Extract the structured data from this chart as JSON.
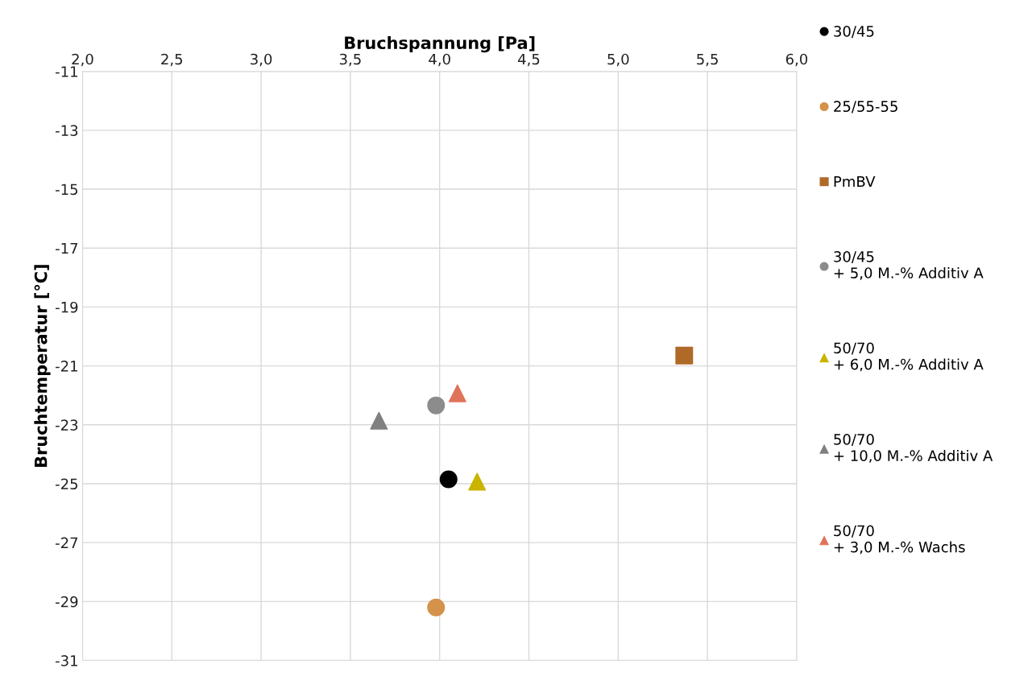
{
  "chart_data": {
    "type": "scatter",
    "xlabel": "Bruchspannung [Pa]",
    "ylabel": "Bruchtemperatur [°C]",
    "xlim": [
      2,
      6
    ],
    "xticks": [
      {
        "value": 2,
        "label": "2,0"
      },
      {
        "value": 2.5,
        "label": "2,5"
      },
      {
        "value": 3,
        "label": "3,0"
      },
      {
        "value": 3.5,
        "label": "3,5"
      },
      {
        "value": 4,
        "label": "4,0"
      },
      {
        "value": 4.5,
        "label": "4,5"
      },
      {
        "value": 5,
        "label": "5,0"
      },
      {
        "value": 5.5,
        "label": "5,5"
      },
      {
        "value": 6,
        "label": "6,0"
      }
    ],
    "ylim": [
      -31,
      -11
    ],
    "yticks": [
      -31,
      -29,
      -27,
      -25,
      -23,
      -21,
      -19,
      -17,
      -15,
      -13,
      -11
    ],
    "grid": true,
    "legend": "right",
    "series": [
      {
        "name": "30/45",
        "color": "#000000",
        "marker": "circle",
        "x": [
          4.05
        ],
        "values": [
          -24.85
        ]
      },
      {
        "name": "25/55-55",
        "color": "#d4924a",
        "marker": "circle",
        "x": [
          3.98
        ],
        "values": [
          -29.2
        ]
      },
      {
        "name": "PmBV",
        "color": "#b06a28",
        "marker": "square",
        "x": [
          5.37
        ],
        "values": [
          -20.65
        ]
      },
      {
        "name": "30/45\n+ 5,0 M.-% Additiv A",
        "color": "#8c8c8c",
        "marker": "circle",
        "x": [
          3.98
        ],
        "values": [
          -22.34
        ]
      },
      {
        "name": "50/70\n+ 6,0 M.-% Additiv A",
        "color": "#c9b400",
        "marker": "triangle",
        "x": [
          4.21
        ],
        "values": [
          -24.93
        ]
      },
      {
        "name": "50/70\n+ 10,0 M.-% Additiv A",
        "color": "#808080",
        "marker": "triangle",
        "x": [
          3.66
        ],
        "values": [
          -22.86
        ]
      },
      {
        "name": "50/70\n+ 3,0 M.-% Wachs",
        "color": "#e0735a",
        "marker": "triangle",
        "x": [
          4.1
        ],
        "values": [
          -21.93
        ]
      }
    ]
  }
}
